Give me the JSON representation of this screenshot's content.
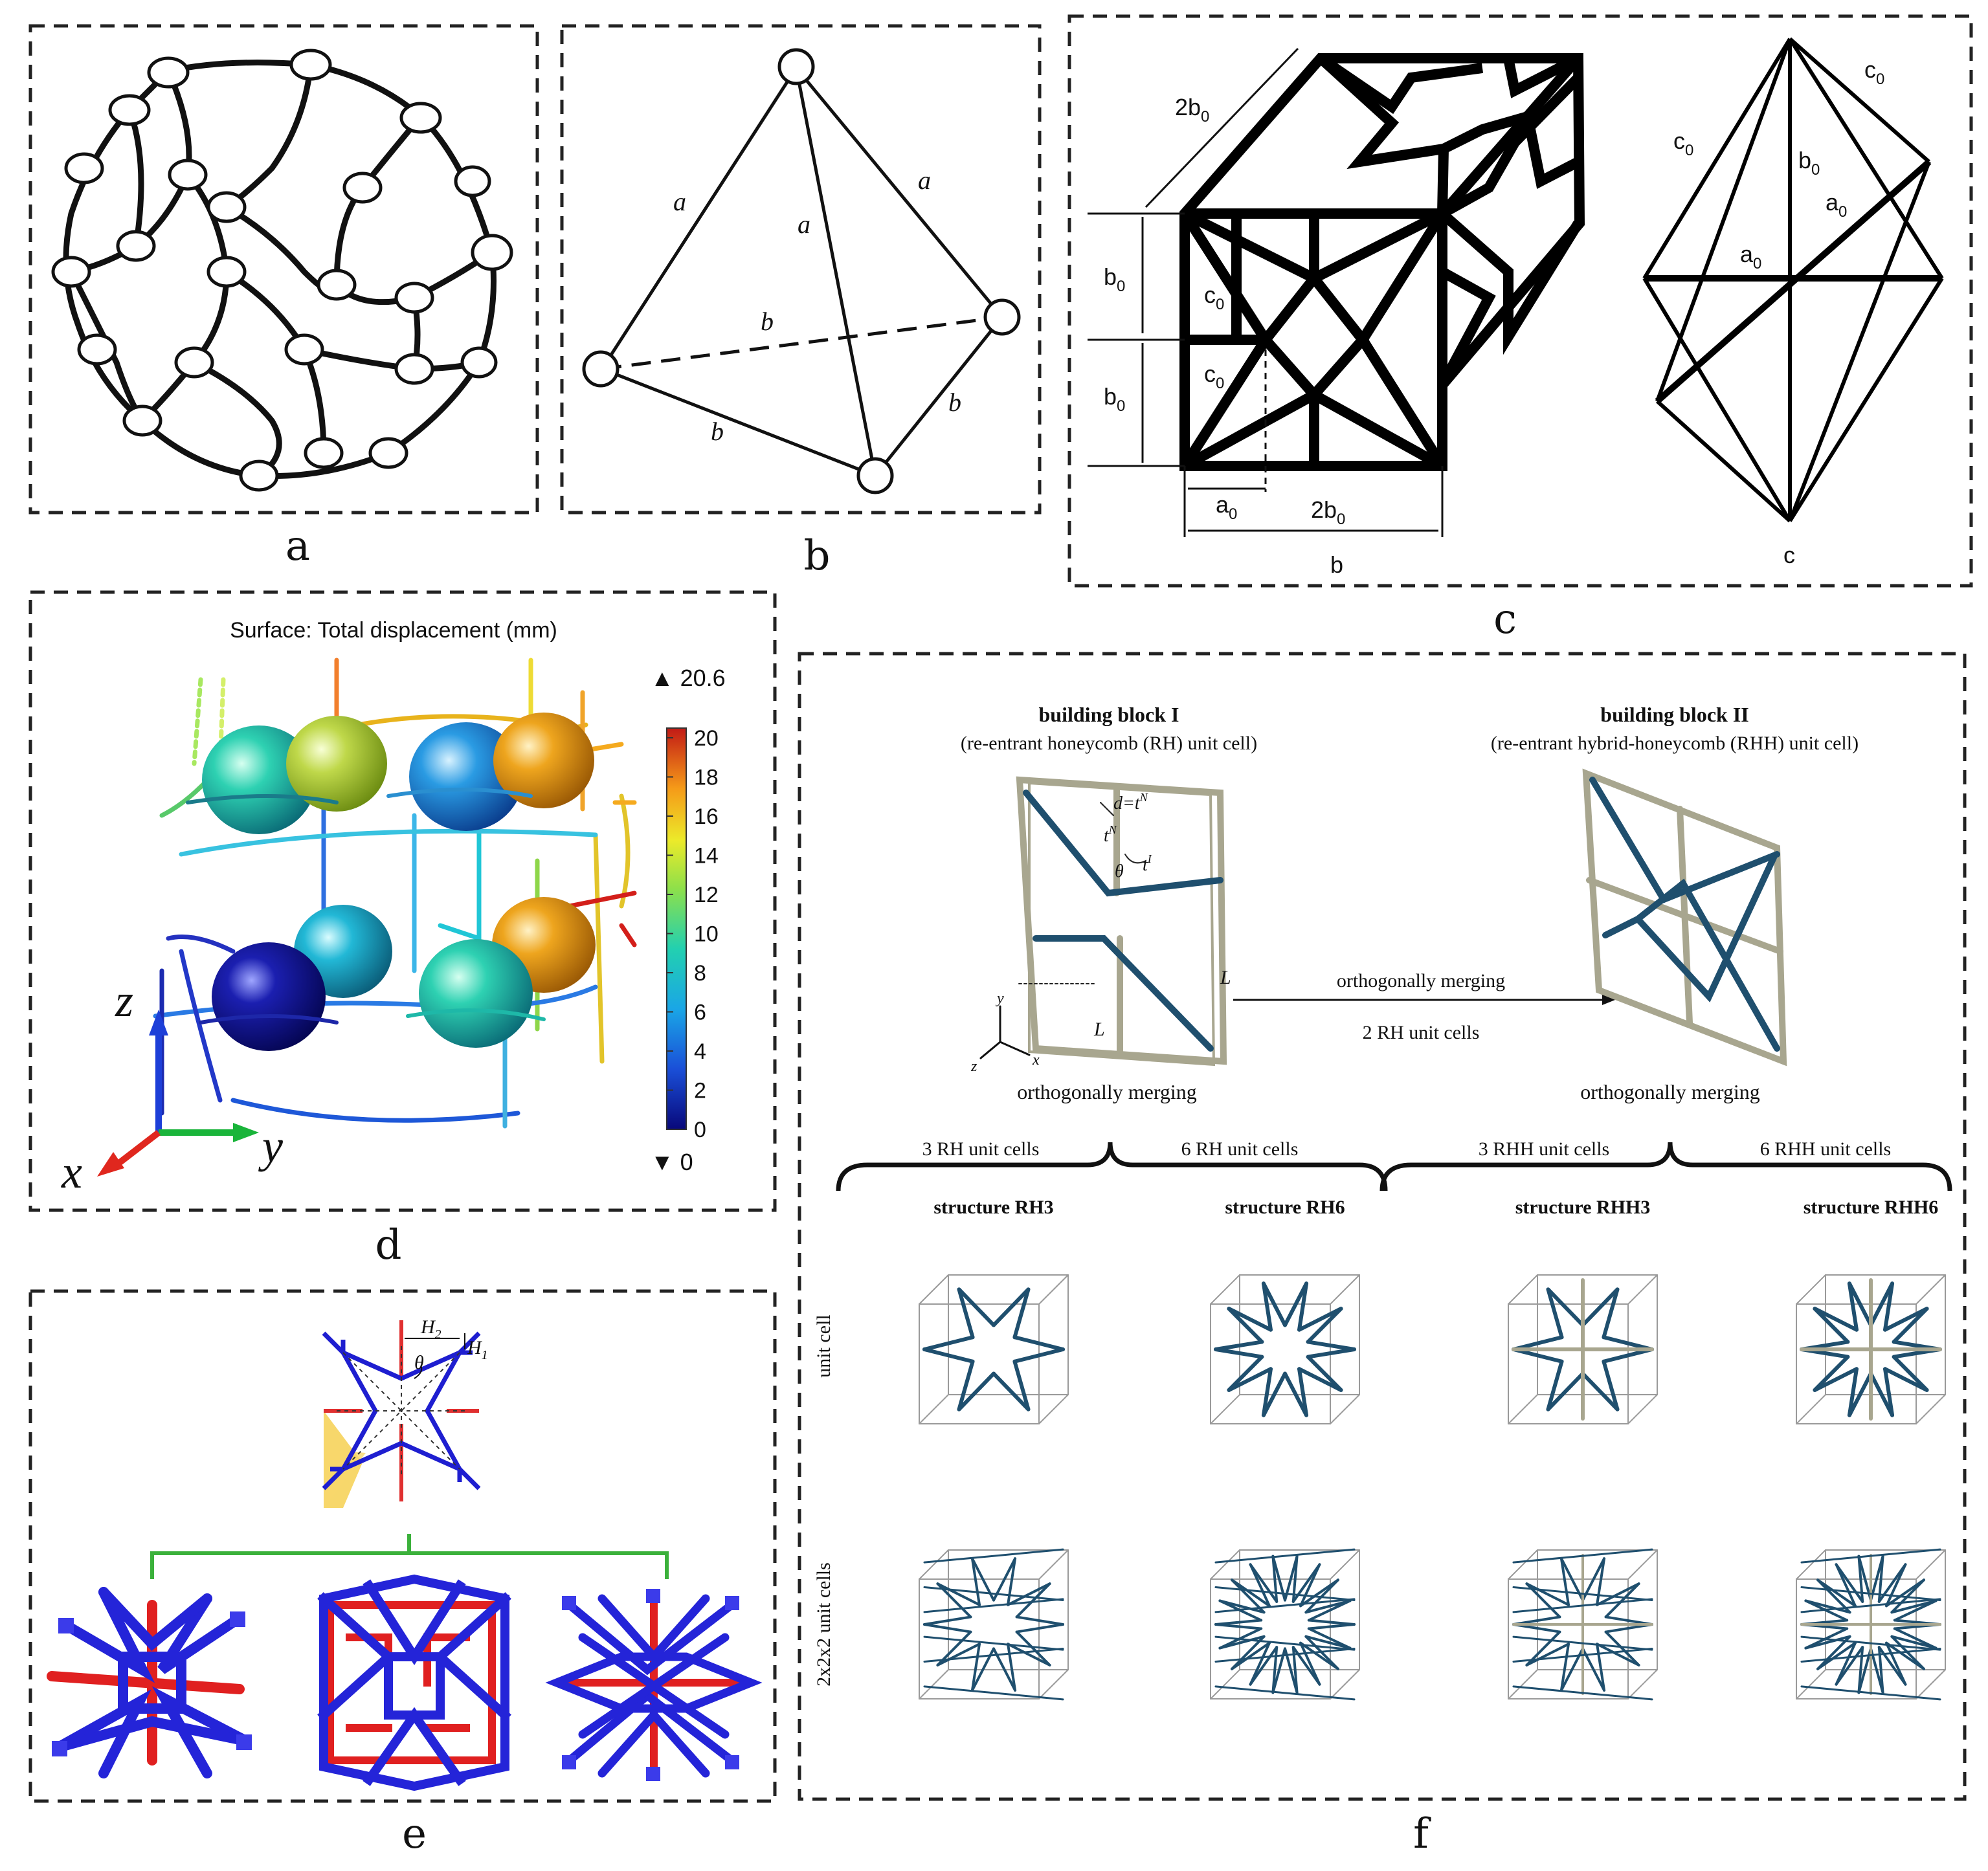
{
  "panels": {
    "a": {
      "caption": "a"
    },
    "b": {
      "caption": "b",
      "edge_labels": {
        "a1": "a",
        "a2": "a",
        "a3": "a",
        "b1": "b",
        "b2": "b",
        "b3": "b"
      }
    },
    "c": {
      "caption": "c",
      "labels": {
        "two_b0_top": "2b",
        "b0_upper": "b",
        "b0_lower": "b",
        "c0_upper": "c",
        "c0_lower": "c",
        "a0_bottom": "a",
        "two_b0_bottom": "2b",
        "b_bottom": "b",
        "c0_right_left": "c",
        "c0_right_top": "c",
        "b0_right": "b",
        "a0_right": "a",
        "a0_center": "a",
        "c_bottom": "c"
      },
      "subscript": "0"
    },
    "d": {
      "caption": "d",
      "title": "Surface: Total displacement (mm)",
      "max_marker": "▲ 20.6",
      "min_marker": "▼ 0",
      "colorbar_ticks": [
        "20",
        "18",
        "16",
        "14",
        "12",
        "10",
        "8",
        "6",
        "4",
        "2",
        "0"
      ],
      "axes": {
        "z": "z",
        "y": "y",
        "x": "x"
      }
    },
    "e": {
      "caption": "e",
      "labels": {
        "H2": "H",
        "H1": "H",
        "theta": "θ"
      },
      "sub2": "2",
      "sub1": "1"
    },
    "f": {
      "caption": "f",
      "block1_title": "building block I",
      "block1_sub": "(re-entrant honeycomb (RH) unit cell)",
      "block2_title": "building block II",
      "block2_sub": "(re-entrant hybrid-honeycomb (RHH) unit cell)",
      "d_label": "d=t",
      "t_label": "t",
      "sup_N": "N",
      "sup_I": "I",
      "theta": "θ",
      "L1": "L",
      "L2": "L",
      "axis_y": "y",
      "axis_z": "z",
      "axis_x": "x",
      "arrow_top": "orthogonally merging",
      "arrow_bottom": "2 RH unit cells",
      "merge_left": "orthogonally merging",
      "merge_right": "orthogonally merging",
      "brace_labels": [
        "3 RH unit cells",
        "6 RH unit cells",
        "3 RHH unit cells",
        "6 RHH unit cells"
      ],
      "structure_titles": [
        "structure RH3",
        "structure RH6",
        "structure RHH3",
        "structure RHH6"
      ],
      "row_labels": [
        "unit cell",
        "2x2x2 unit cells"
      ]
    }
  },
  "colors": {
    "beam_blue": "#1f4f6e",
    "beam_gray": "#a8a68f",
    "struct_blue": "#1e1ed0",
    "struct_red": "#e02020",
    "yellow_fill": "#f7d76b"
  }
}
